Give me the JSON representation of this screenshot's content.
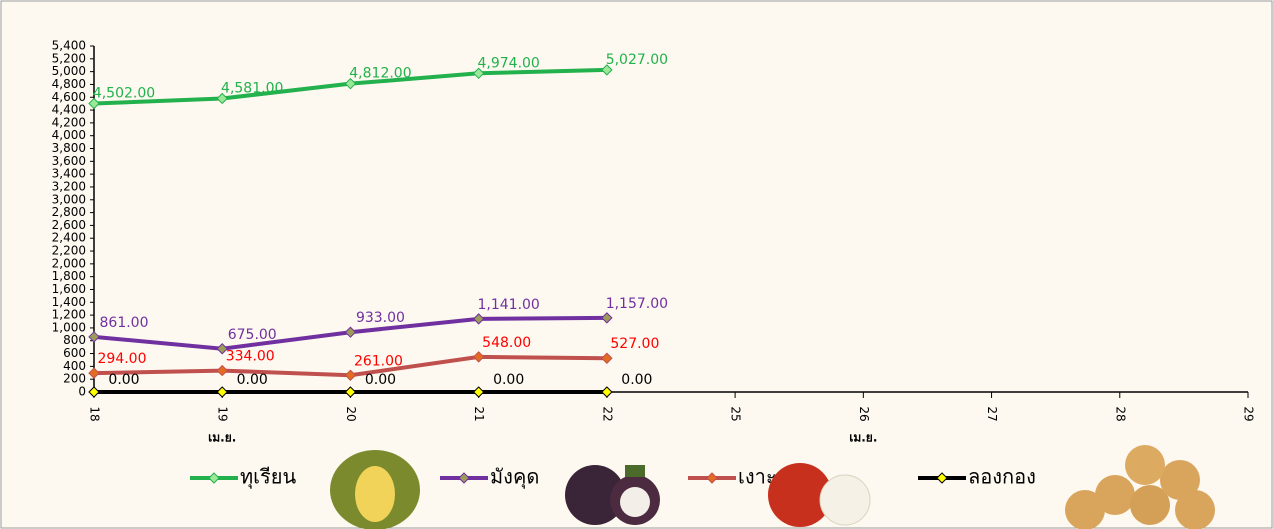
{
  "chart_data": {
    "type": "line",
    "categories": [
      "18",
      "19",
      "20",
      "21",
      "22",
      "25",
      "26",
      "27",
      "28",
      "29"
    ],
    "x_groups": [
      "เม.ย.",
      "เม.ย."
    ],
    "ylim": [
      0,
      5400
    ],
    "yticks": [
      0,
      200,
      400,
      600,
      800,
      {
        "value": 1000,
        "label": "1,000"
      },
      {
        "value": 1200,
        "label": "1,200"
      },
      {
        "value": 1400,
        "label": "1,400"
      },
      {
        "value": 1600,
        "label": "1,600"
      },
      {
        "value": 1800,
        "label": "1,800"
      },
      {
        "value": 2000,
        "label": "2,000"
      },
      {
        "value": 2200,
        "label": "2,200"
      },
      {
        "value": 2400,
        "label": "2,400"
      },
      {
        "value": 2600,
        "label": "2,600"
      },
      {
        "value": 2800,
        "label": "2,800"
      },
      {
        "value": 3000,
        "label": "3,000"
      },
      {
        "value": 3200,
        "label": "3,200"
      },
      {
        "value": 3400,
        "label": "3,400"
      },
      {
        "value": 3600,
        "label": "3,600"
      },
      {
        "value": 3800,
        "label": "3,800"
      },
      {
        "value": 4000,
        "label": "4,000"
      },
      {
        "value": 4200,
        "label": "4,200"
      },
      {
        "value": 4400,
        "label": "4,400"
      },
      {
        "value": 4600,
        "label": "4,600"
      },
      {
        "value": 4800,
        "label": "4,800"
      },
      {
        "value": 5000,
        "label": "5,000"
      },
      {
        "value": 5200,
        "label": "5,200"
      },
      {
        "value": 5400,
        "label": "5,400"
      }
    ],
    "grid": false,
    "legend": "bottom",
    "series": [
      {
        "name": "ทุเรียน",
        "color": "#22b14c",
        "marker_color": "#9be89b",
        "label_color": "#22b14c",
        "values": [
          4502,
          4581,
          4812,
          4974,
          5027,
          null,
          null,
          null,
          null,
          null
        ],
        "value_labels": [
          "4,502.00",
          "4,581.00",
          "4,812.00",
          "4,974.00",
          "5,027.00",
          null,
          null,
          null,
          null,
          null
        ]
      },
      {
        "name": "มังคุด",
        "color": "#7030a0",
        "marker_color": "#9c9c5a",
        "label_color": "#7030a0",
        "values": [
          861,
          675,
          933,
          1141,
          1157,
          null,
          null,
          null,
          null,
          null
        ],
        "value_labels": [
          "861.00",
          "675.00",
          "933.00",
          "1,141.00",
          "1,157.00",
          null,
          null,
          null,
          null,
          null
        ]
      },
      {
        "name": "เงาะ",
        "color": "#c0504d",
        "marker_color": "#e46c22",
        "label_color": "#ff0000",
        "values": [
          294,
          334,
          261,
          548,
          527,
          null,
          null,
          null,
          null,
          null
        ],
        "value_labels": [
          "294.00",
          "334.00",
          "261.00",
          "548.00",
          "527.00",
          null,
          null,
          null,
          null,
          null
        ]
      },
      {
        "name": "ลองกอง",
        "color": "#000000",
        "marker_color": "#ffff00",
        "label_color": "#000000",
        "values": [
          0,
          0,
          0,
          0,
          0,
          null,
          null,
          null,
          null,
          null
        ],
        "value_labels": [
          "0.00",
          "0.00",
          "0.00",
          "0.00",
          "0.00",
          null,
          null,
          null,
          null,
          null
        ]
      }
    ]
  }
}
